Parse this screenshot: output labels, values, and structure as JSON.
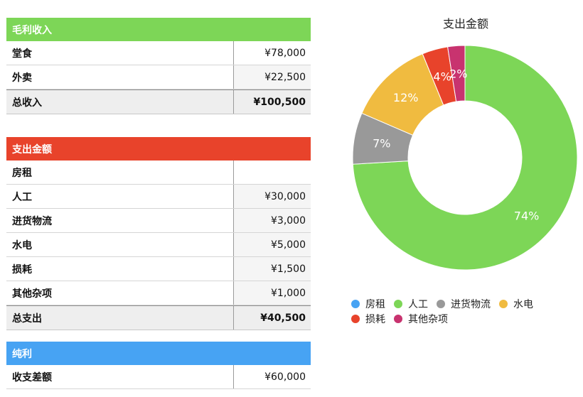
{
  "income": {
    "header": "毛利收入",
    "color": "#7dd657",
    "rows": [
      {
        "label": "堂食",
        "value": "¥78,000"
      },
      {
        "label": "外卖",
        "value": "¥22,500"
      }
    ],
    "total": {
      "label": "总收入",
      "value": "¥100,500"
    }
  },
  "expense": {
    "header": "支出金额",
    "color": "#e8432b",
    "rows": [
      {
        "label": "房租",
        "value": ""
      },
      {
        "label": "人工",
        "value": "¥30,000"
      },
      {
        "label": "进货物流",
        "value": "¥3,000"
      },
      {
        "label": "水电",
        "value": "¥5,000"
      },
      {
        "label": "损耗",
        "value": "¥1,500"
      },
      {
        "label": "其他杂项",
        "value": "¥1,000"
      }
    ],
    "total": {
      "label": "总支出",
      "value": "¥40,500"
    }
  },
  "net": {
    "header": "纯利",
    "color": "#47a3f3",
    "rows": [
      {
        "label": "收支差额",
        "value": "¥60,000"
      }
    ]
  },
  "chart_data": {
    "type": "pie",
    "title": "支出金额",
    "donut": true,
    "categories": [
      "房租",
      "人工",
      "进货物流",
      "水电",
      "损耗",
      "其他杂项"
    ],
    "values": [
      0,
      30000,
      3000,
      5000,
      1500,
      1000
    ],
    "labels": [
      "",
      "74%",
      "7%",
      "12%",
      "4%",
      "2%"
    ],
    "colors": [
      "#47a3f3",
      "#7dd657",
      "#999999",
      "#f0bb40",
      "#e8432b",
      "#c8336f"
    ],
    "legend": "bottom"
  }
}
